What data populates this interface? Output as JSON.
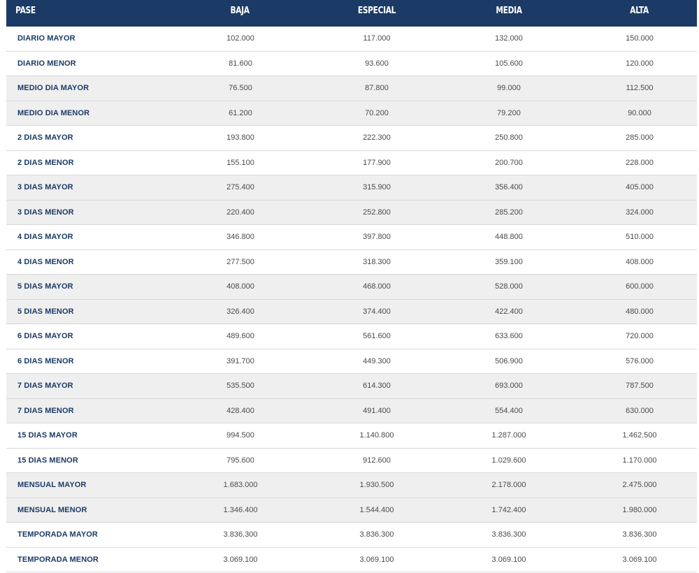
{
  "table": {
    "headers": [
      "PASE",
      "BAJA",
      "ESPECIAL",
      "MEDIA",
      "ALTA"
    ],
    "rows": [
      [
        "DIARIO MAYOR",
        "102.000",
        "117.000",
        "132.000",
        "150.000"
      ],
      [
        "DIARIO MENOR",
        "81.600",
        "93.600",
        "105.600",
        "120.000"
      ],
      [
        "MEDIO DIA MAYOR",
        "76.500",
        "87.800",
        "99.000",
        "112.500"
      ],
      [
        "MEDIO DIA MENOR",
        "61.200",
        "70.200",
        "79.200",
        "90.000"
      ],
      [
        "2 DIAS MAYOR",
        "193.800",
        "222.300",
        "250.800",
        "285.000"
      ],
      [
        "2 DIAS MENOR",
        "155.100",
        "177.900",
        "200.700",
        "228.000"
      ],
      [
        "3 DIAS MAYOR",
        "275.400",
        "315.900",
        "356.400",
        "405.000"
      ],
      [
        "3 DIAS MENOR",
        "220.400",
        "252.800",
        "285.200",
        "324.000"
      ],
      [
        "4 DIAS MAYOR",
        "346.800",
        "397.800",
        "448.800",
        "510.000"
      ],
      [
        "4 DIAS MENOR",
        "277.500",
        "318.300",
        "359.100",
        "408.000"
      ],
      [
        "5 DIAS MAYOR",
        "408.000",
        "468.000",
        "528.000",
        "600.000"
      ],
      [
        "5 DIAS MENOR",
        "326.400",
        "374.400",
        "422.400",
        "480.000"
      ],
      [
        "6 DIAS MAYOR",
        "489.600",
        "561.600",
        "633.600",
        "720.000"
      ],
      [
        "6 DIAS MENOR",
        "391.700",
        "449.300",
        "506.900",
        "576.000"
      ],
      [
        "7 DIAS MAYOR",
        "535.500",
        "614.300",
        "693.000",
        "787.500"
      ],
      [
        "7 DIAS MENOR",
        "428.400",
        "491.400",
        "554.400",
        "630.000"
      ],
      [
        "15 DIAS MAYOR",
        "994.500",
        "1.140.800",
        "1.287.000",
        "1.462.500"
      ],
      [
        "15 DIAS MENOR",
        "795.600",
        "912.600",
        "1.029.600",
        "1.170.000"
      ],
      [
        "MENSUAL MAYOR",
        "1.683.000",
        "1.930.500",
        "2.178.000",
        "2.475.000"
      ],
      [
        "MENSUAL MENOR",
        "1.346.400",
        "1.544.400",
        "1.742.400",
        "1.980.000"
      ],
      [
        "TEMPORADA MAYOR",
        "3.836.300",
        "3.836.300",
        "3.836.300",
        "3.836.300"
      ],
      [
        "TEMPORADA MENOR",
        "3.069.100",
        "3.069.100",
        "3.069.100",
        "3.069.100"
      ]
    ]
  },
  "colors": {
    "header_bg": "#1b3a66",
    "label_text": "#1b3a66",
    "value_text": "#4a4a4a",
    "row_shade": "#efefef"
  }
}
